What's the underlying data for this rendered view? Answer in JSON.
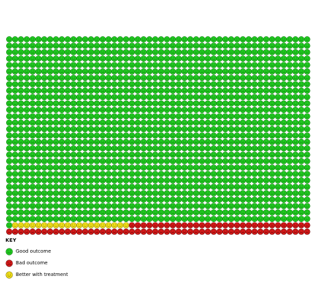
{
  "pictogram": {
    "columns": 52,
    "rows": 31,
    "total": 1612,
    "counts": {
      "good": 1509,
      "better": 20,
      "bad": 83
    },
    "colors": {
      "good": "#22cc22",
      "good_dark": "#0a7a0a",
      "better": "#f2e21c",
      "better_dark": "#8a7a00",
      "bad": "#d61a1a",
      "bad_dark": "#6e0606"
    },
    "icon": "smiley-face-icon"
  },
  "legend": {
    "title": "KEY",
    "items": [
      {
        "key": "good",
        "label": "Good outcome",
        "icon": "green-smiley-icon"
      },
      {
        "key": "bad",
        "label": "Bad outcome",
        "icon": "red-smiley-icon"
      },
      {
        "key": "better",
        "label": "Better with treatment",
        "icon": "yellow-smiley-icon"
      }
    ]
  }
}
